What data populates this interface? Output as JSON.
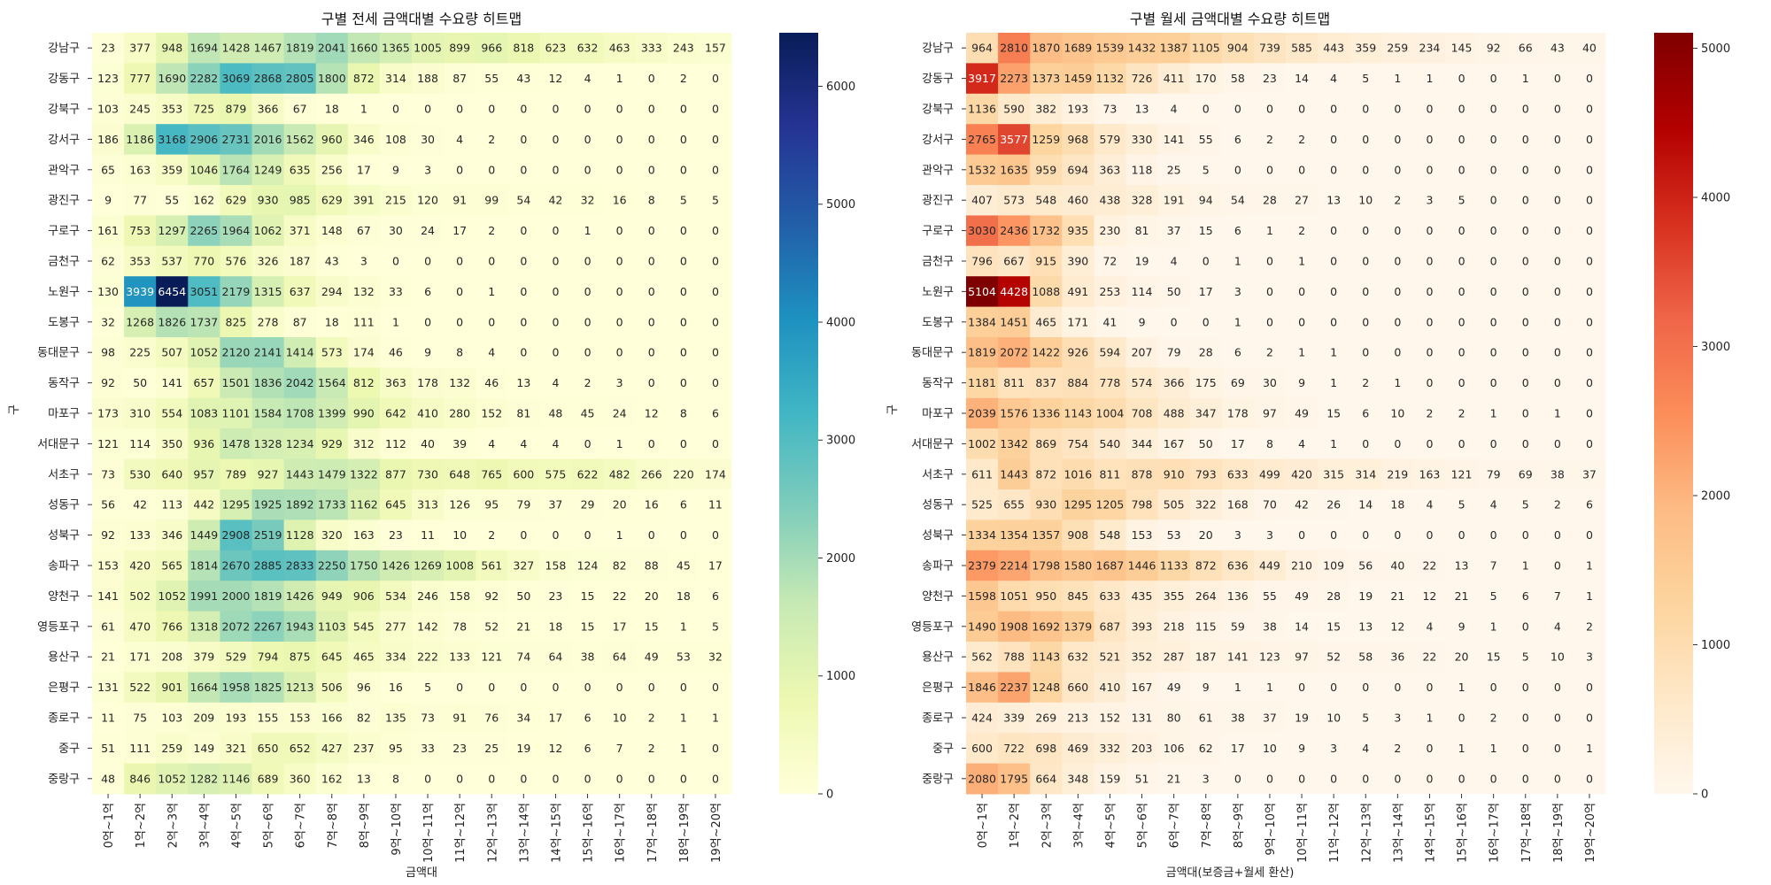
{
  "chart_data": [
    {
      "type": "heatmap",
      "title": "구별 전세 금액대별 수요량 히트맵",
      "xlabel": "금액대",
      "ylabel": "구",
      "colormap": "YlGnBu",
      "vmin": 0,
      "vmax": 6454,
      "colorbar_ticks": [
        0,
        1000,
        2000,
        3000,
        4000,
        5000,
        6000
      ],
      "rows": [
        "강남구",
        "강동구",
        "강북구",
        "강서구",
        "관악구",
        "광진구",
        "구로구",
        "금천구",
        "노원구",
        "도봉구",
        "동대문구",
        "동작구",
        "마포구",
        "서대문구",
        "서초구",
        "성동구",
        "성북구",
        "송파구",
        "양천구",
        "영등포구",
        "용산구",
        "은평구",
        "종로구",
        "중구",
        "중랑구"
      ],
      "columns": [
        "0억~1억",
        "1억~2억",
        "2억~3억",
        "3억~4억",
        "4억~5억",
        "5억~6억",
        "6억~7억",
        "7억~8억",
        "8억~9억",
        "9억~10억",
        "10억~11억",
        "11억~12억",
        "12억~13억",
        "13억~14억",
        "14억~15억",
        "15억~16억",
        "16억~17억",
        "17억~18억",
        "18억~19억",
        "19억~20억"
      ],
      "values": [
        [
          23,
          377,
          948,
          1694,
          1428,
          1467,
          1819,
          2041,
          1660,
          1365,
          1005,
          899,
          966,
          818,
          623,
          632,
          463,
          333,
          243,
          157
        ],
        [
          123,
          777,
          1690,
          2282,
          3069,
          2868,
          2805,
          1800,
          872,
          314,
          188,
          87,
          55,
          43,
          12,
          4,
          1,
          0,
          2,
          0
        ],
        [
          103,
          245,
          353,
          725,
          879,
          366,
          67,
          18,
          1,
          0,
          0,
          0,
          0,
          0,
          0,
          0,
          0,
          0,
          0,
          0
        ],
        [
          186,
          1186,
          3168,
          2906,
          2731,
          2016,
          1562,
          960,
          346,
          108,
          30,
          4,
          2,
          0,
          0,
          0,
          0,
          0,
          0,
          0
        ],
        [
          65,
          163,
          359,
          1046,
          1764,
          1249,
          635,
          256,
          17,
          9,
          3,
          0,
          0,
          0,
          0,
          0,
          0,
          0,
          0,
          0
        ],
        [
          9,
          77,
          55,
          162,
          629,
          930,
          985,
          629,
          391,
          215,
          120,
          91,
          99,
          54,
          42,
          32,
          16,
          8,
          5,
          5
        ],
        [
          161,
          753,
          1297,
          2265,
          1964,
          1062,
          371,
          148,
          67,
          30,
          24,
          17,
          2,
          0,
          0,
          1,
          0,
          0,
          0,
          0
        ],
        [
          62,
          353,
          537,
          770,
          576,
          326,
          187,
          43,
          3,
          0,
          0,
          0,
          0,
          0,
          0,
          0,
          0,
          0,
          0,
          0
        ],
        [
          130,
          3939,
          6454,
          3051,
          2179,
          1315,
          637,
          294,
          132,
          33,
          6,
          0,
          1,
          0,
          0,
          0,
          0,
          0,
          0,
          0
        ],
        [
          32,
          1268,
          1826,
          1737,
          825,
          278,
          87,
          18,
          111,
          1,
          0,
          0,
          0,
          0,
          0,
          0,
          0,
          0,
          0,
          0
        ],
        [
          98,
          225,
          507,
          1052,
          2120,
          2141,
          1414,
          573,
          174,
          46,
          9,
          8,
          4,
          0,
          0,
          0,
          0,
          0,
          0,
          0
        ],
        [
          92,
          50,
          141,
          657,
          1501,
          1836,
          2042,
          1564,
          812,
          363,
          178,
          132,
          46,
          13,
          4,
          2,
          3,
          0,
          0,
          0
        ],
        [
          173,
          310,
          554,
          1083,
          1101,
          1584,
          1708,
          1399,
          990,
          642,
          410,
          280,
          152,
          81,
          48,
          45,
          24,
          12,
          8,
          6
        ],
        [
          121,
          114,
          350,
          936,
          1478,
          1328,
          1234,
          929,
          312,
          112,
          40,
          39,
          4,
          4,
          4,
          0,
          1,
          0,
          0,
          0
        ],
        [
          73,
          530,
          640,
          957,
          789,
          927,
          1443,
          1479,
          1322,
          877,
          730,
          648,
          765,
          600,
          575,
          622,
          482,
          266,
          220,
          174
        ],
        [
          56,
          42,
          113,
          442,
          1295,
          1925,
          1892,
          1733,
          1162,
          645,
          313,
          126,
          95,
          79,
          37,
          29,
          20,
          16,
          6,
          11
        ],
        [
          92,
          133,
          346,
          1449,
          2908,
          2519,
          1128,
          320,
          163,
          23,
          11,
          10,
          2,
          0,
          0,
          0,
          1,
          0,
          0,
          0
        ],
        [
          153,
          420,
          565,
          1814,
          2670,
          2885,
          2833,
          2250,
          1750,
          1426,
          1269,
          1008,
          561,
          327,
          158,
          124,
          82,
          88,
          45,
          17
        ],
        [
          141,
          502,
          1052,
          1991,
          2000,
          1819,
          1426,
          949,
          906,
          534,
          246,
          158,
          92,
          50,
          23,
          15,
          22,
          20,
          18,
          6
        ],
        [
          61,
          470,
          766,
          1318,
          2072,
          2267,
          1943,
          1103,
          545,
          277,
          142,
          78,
          52,
          21,
          18,
          15,
          17,
          15,
          1,
          5
        ],
        [
          21,
          171,
          208,
          379,
          529,
          794,
          875,
          645,
          465,
          334,
          222,
          133,
          121,
          74,
          64,
          38,
          64,
          49,
          53,
          32
        ],
        [
          131,
          522,
          901,
          1664,
          1958,
          1825,
          1213,
          506,
          96,
          16,
          5,
          0,
          0,
          0,
          0,
          0,
          0,
          0,
          0,
          0
        ],
        [
          11,
          75,
          103,
          209,
          193,
          155,
          153,
          166,
          82,
          135,
          73,
          91,
          76,
          34,
          17,
          6,
          10,
          2,
          1,
          1
        ],
        [
          51,
          111,
          259,
          149,
          321,
          650,
          652,
          427,
          237,
          95,
          33,
          23,
          25,
          19,
          12,
          6,
          7,
          2,
          1,
          0
        ],
        [
          48,
          846,
          1052,
          1282,
          1146,
          689,
          360,
          162,
          13,
          8,
          0,
          0,
          0,
          0,
          0,
          0,
          0,
          0,
          0,
          0
        ]
      ]
    },
    {
      "type": "heatmap",
      "title": "구별 월세 금액대별 수요량 히트맵",
      "xlabel": "금액대(보증금+월세 환산)",
      "ylabel": "구",
      "colormap": "OrRd",
      "vmin": 0,
      "vmax": 5104,
      "colorbar_ticks": [
        0,
        1000,
        2000,
        3000,
        4000,
        5000
      ],
      "rows": [
        "강남구",
        "강동구",
        "강북구",
        "강서구",
        "관악구",
        "광진구",
        "구로구",
        "금천구",
        "노원구",
        "도봉구",
        "동대문구",
        "동작구",
        "마포구",
        "서대문구",
        "서초구",
        "성동구",
        "성북구",
        "송파구",
        "양천구",
        "영등포구",
        "용산구",
        "은평구",
        "종로구",
        "중구",
        "중랑구"
      ],
      "columns": [
        "0억~1억",
        "1억~2억",
        "2억~3억",
        "3억~4억",
        "4억~5억",
        "5억~6억",
        "6억~7억",
        "7억~8억",
        "8억~9억",
        "9억~10억",
        "10억~11억",
        "11억~12억",
        "12억~13억",
        "13억~14억",
        "14억~15억",
        "15억~16억",
        "16억~17억",
        "17억~18억",
        "18억~19억",
        "19억~20억"
      ],
      "values": [
        [
          964,
          2810,
          1870,
          1689,
          1539,
          1432,
          1387,
          1105,
          904,
          739,
          585,
          443,
          359,
          259,
          234,
          145,
          92,
          66,
          43,
          40
        ],
        [
          3917,
          2273,
          1373,
          1459,
          1132,
          726,
          411,
          170,
          58,
          23,
          14,
          4,
          5,
          1,
          1,
          0,
          0,
          1,
          0,
          0
        ],
        [
          1136,
          590,
          382,
          193,
          73,
          13,
          4,
          0,
          0,
          0,
          0,
          0,
          0,
          0,
          0,
          0,
          0,
          0,
          0,
          0
        ],
        [
          2765,
          3577,
          1259,
          968,
          579,
          330,
          141,
          55,
          6,
          2,
          2,
          0,
          0,
          0,
          0,
          0,
          0,
          0,
          0,
          0
        ],
        [
          1532,
          1635,
          959,
          694,
          363,
          118,
          25,
          5,
          0,
          0,
          0,
          0,
          0,
          0,
          0,
          0,
          0,
          0,
          0,
          0
        ],
        [
          407,
          573,
          548,
          460,
          438,
          328,
          191,
          94,
          54,
          28,
          27,
          13,
          10,
          2,
          3,
          5,
          0,
          0,
          0,
          0
        ],
        [
          3030,
          2436,
          1732,
          935,
          230,
          81,
          37,
          15,
          6,
          1,
          2,
          0,
          0,
          0,
          0,
          0,
          0,
          0,
          0,
          0
        ],
        [
          796,
          667,
          915,
          390,
          72,
          19,
          4,
          0,
          1,
          0,
          1,
          0,
          0,
          0,
          0,
          0,
          0,
          0,
          0,
          0
        ],
        [
          5104,
          4428,
          1088,
          491,
          253,
          114,
          50,
          17,
          3,
          0,
          0,
          0,
          0,
          0,
          0,
          0,
          0,
          0,
          0,
          0
        ],
        [
          1384,
          1451,
          465,
          171,
          41,
          9,
          0,
          0,
          1,
          0,
          0,
          0,
          0,
          0,
          0,
          0,
          0,
          0,
          0,
          0
        ],
        [
          1819,
          2072,
          1422,
          926,
          594,
          207,
          79,
          28,
          6,
          2,
          1,
          1,
          0,
          0,
          0,
          0,
          0,
          0,
          0,
          0
        ],
        [
          1181,
          811,
          837,
          884,
          778,
          574,
          366,
          175,
          69,
          30,
          9,
          1,
          2,
          1,
          0,
          0,
          0,
          0,
          0,
          0
        ],
        [
          2039,
          1576,
          1336,
          1143,
          1004,
          708,
          488,
          347,
          178,
          97,
          49,
          15,
          6,
          10,
          2,
          2,
          1,
          0,
          1,
          0
        ],
        [
          1002,
          1342,
          869,
          754,
          540,
          344,
          167,
          50,
          17,
          8,
          4,
          1,
          0,
          0,
          0,
          0,
          0,
          0,
          0,
          0
        ],
        [
          611,
          1443,
          872,
          1016,
          811,
          878,
          910,
          793,
          633,
          499,
          420,
          315,
          314,
          219,
          163,
          121,
          79,
          69,
          38,
          37
        ],
        [
          525,
          655,
          930,
          1295,
          1205,
          798,
          505,
          322,
          168,
          70,
          42,
          26,
          14,
          18,
          4,
          5,
          4,
          5,
          2,
          6
        ],
        [
          1334,
          1354,
          1357,
          908,
          548,
          153,
          53,
          20,
          3,
          3,
          0,
          0,
          0,
          0,
          0,
          0,
          0,
          0,
          0,
          0
        ],
        [
          2379,
          2214,
          1798,
          1580,
          1687,
          1446,
          1133,
          872,
          636,
          449,
          210,
          109,
          56,
          40,
          22,
          13,
          7,
          1,
          0,
          1
        ],
        [
          1598,
          1051,
          950,
          845,
          633,
          435,
          355,
          264,
          136,
          55,
          49,
          28,
          19,
          21,
          12,
          21,
          5,
          6,
          7,
          1
        ],
        [
          1490,
          1908,
          1692,
          1379,
          687,
          393,
          218,
          115,
          59,
          38,
          14,
          15,
          13,
          12,
          4,
          9,
          1,
          0,
          4,
          2
        ],
        [
          562,
          788,
          1143,
          632,
          521,
          352,
          287,
          187,
          141,
          123,
          97,
          52,
          58,
          36,
          22,
          20,
          15,
          5,
          10,
          3
        ],
        [
          1846,
          2237,
          1248,
          660,
          410,
          167,
          49,
          9,
          1,
          1,
          0,
          0,
          0,
          0,
          0,
          1,
          0,
          0,
          0,
          0
        ],
        [
          424,
          339,
          269,
          213,
          152,
          131,
          80,
          61,
          38,
          37,
          19,
          10,
          5,
          3,
          1,
          0,
          2,
          0,
          0,
          0
        ],
        [
          600,
          722,
          698,
          469,
          332,
          203,
          106,
          62,
          17,
          10,
          9,
          3,
          4,
          2,
          0,
          1,
          1,
          0,
          0,
          1
        ],
        [
          2080,
          1795,
          664,
          348,
          159,
          51,
          21,
          3,
          0,
          0,
          0,
          0,
          0,
          0,
          0,
          0,
          0,
          0,
          0,
          0
        ]
      ]
    }
  ]
}
